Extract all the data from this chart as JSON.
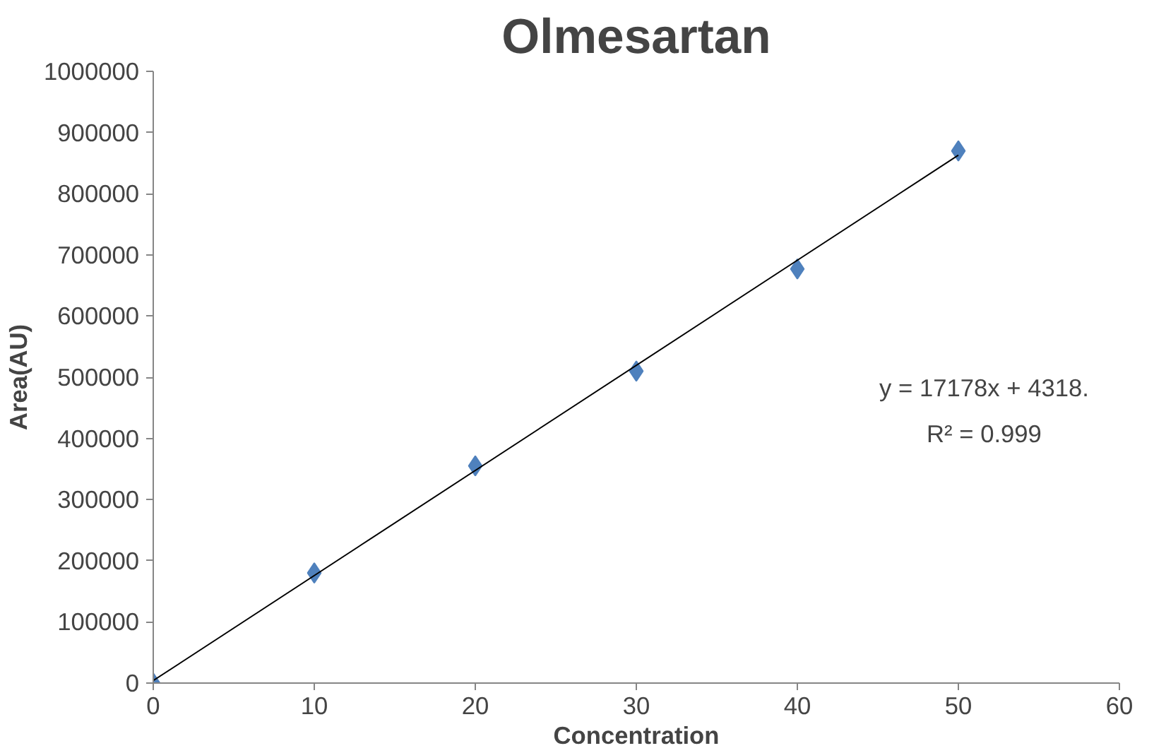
{
  "chart_data": {
    "type": "scatter",
    "title": "Olmesartan",
    "xlabel": "Concentration",
    "ylabel": "Area(AU)",
    "x": [
      0,
      10,
      20,
      30,
      40,
      50
    ],
    "series": [
      {
        "color": "#4f81bd",
        "values": [
          0,
          180000,
          355000,
          510000,
          677000,
          870000
        ],
        "marker": "diamond"
      },
      {
        "type": "line",
        "color": "#000000",
        "x": [
          0,
          50
        ],
        "values": [
          4000,
          863000
        ],
        "marker": "none",
        "line_style": "solid"
      }
    ],
    "xlim": [
      0,
      60
    ],
    "xticks": [
      0,
      10,
      20,
      30,
      40,
      50,
      60
    ],
    "ylim": [
      0,
      1000000
    ],
    "yticks": [
      0,
      100000,
      200000,
      300000,
      400000,
      500000,
      600000,
      700000,
      800000,
      900000,
      1000000
    ],
    "grid": false,
    "annotations": [
      "y = 17178x + 4318.",
      "R² = 0.999"
    ]
  }
}
